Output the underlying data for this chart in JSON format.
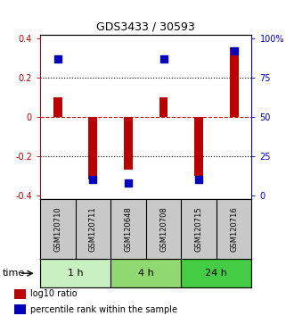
{
  "title": "GDS3433 / 30593",
  "samples": [
    "GSM120710",
    "GSM120711",
    "GSM120648",
    "GSM120708",
    "GSM120715",
    "GSM120716"
  ],
  "log10_ratio": [
    0.1,
    -0.32,
    -0.27,
    0.1,
    -0.3,
    0.355
  ],
  "percentile_rank": [
    87,
    10,
    8,
    87,
    10,
    92
  ],
  "time_groups": [
    {
      "label": "1 h",
      "samples": [
        0,
        1
      ],
      "color": "#c8f0c0"
    },
    {
      "label": "4 h",
      "samples": [
        2,
        3
      ],
      "color": "#90d870"
    },
    {
      "label": "24 h",
      "samples": [
        4,
        5
      ],
      "color": "#44cc44"
    }
  ],
  "ylim": [
    -0.42,
    0.42
  ],
  "yticks_left": [
    -0.4,
    -0.2,
    0.0,
    0.2,
    0.4
  ],
  "yticks_right_labels": [
    "0",
    "25",
    "50",
    "75",
    "100%"
  ],
  "bar_color": "#bb0000",
  "dot_color": "#0000bb",
  "bar_width": 0.25,
  "dot_size": 28,
  "hline_zero_color": "#cc0000",
  "hline_dotted_color": "#000000",
  "background_color": "#ffffff",
  "plot_bg_color": "#ffffff",
  "label_bg_color": "#c8c8c8",
  "title_fontsize": 9,
  "tick_fontsize": 7,
  "sample_fontsize": 6,
  "time_fontsize": 8,
  "legend_fontsize": 7
}
